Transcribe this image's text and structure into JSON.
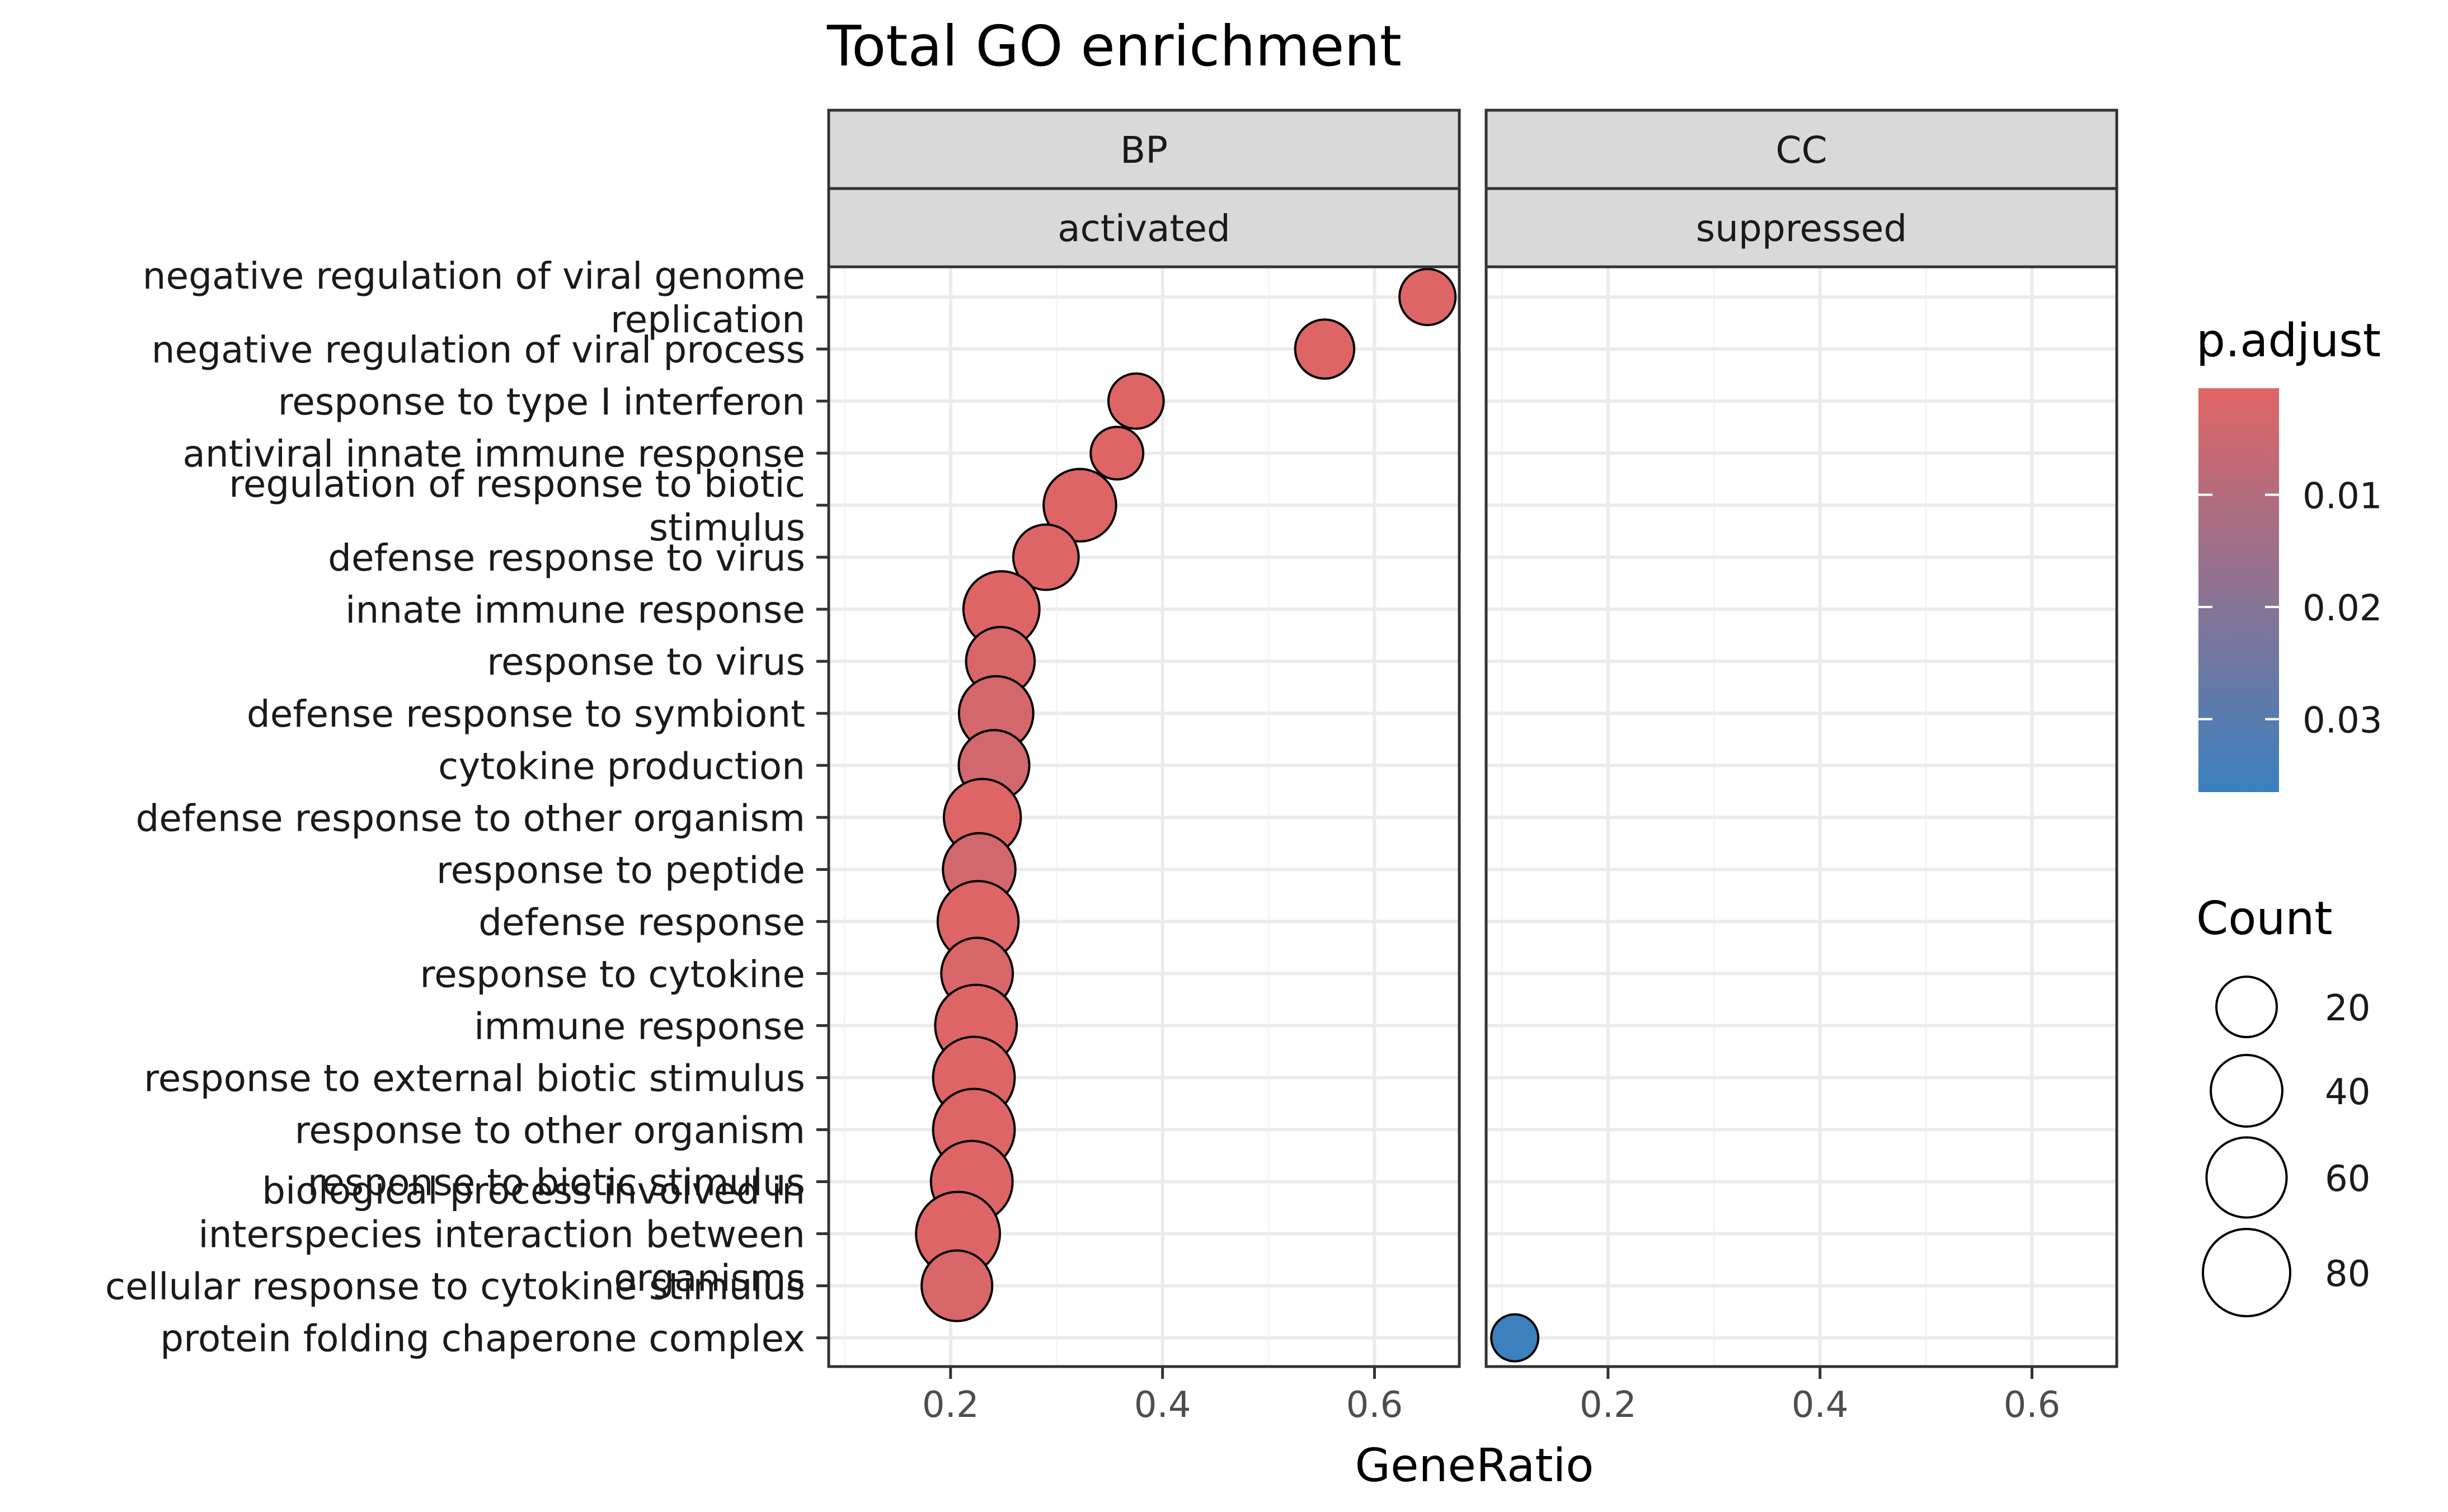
{
  "chart_data": {
    "type": "scatter",
    "title": "Total GO enrichment",
    "xlabel": "GeneRatio",
    "ylabel": "",
    "xlim": [
      0.085,
      0.68
    ],
    "xticks": [
      0.2,
      0.4,
      0.6
    ],
    "xtick_labels": [
      "0.2",
      "0.4",
      "0.6"
    ],
    "grid": true,
    "legend_position": "right",
    "categories": [
      "negative regulation of viral genome replication",
      "negative regulation of viral process",
      "response to type I interferon",
      "antiviral innate immune response",
      "regulation of response to biotic stimulus",
      "defense response to virus",
      "innate immune response",
      "response to virus",
      "defense response to symbiont",
      "cytokine production",
      "defense response to other organism",
      "response to peptide",
      "defense response",
      "response to cytokine",
      "immune response",
      "response to external biotic stimulus",
      "response to other organism",
      "response to biotic stimulus",
      "biological process involved in interspecies interaction between organisms",
      "cellular response to cytokine stimulus",
      "protein folding chaperone complex"
    ],
    "category_lines": [
      [
        "negative regulation of viral genome",
        "replication"
      ],
      [
        "negative regulation of viral process"
      ],
      [
        "response to type I interferon"
      ],
      [
        "antiviral innate immune response"
      ],
      [
        "regulation of response to biotic",
        "stimulus"
      ],
      [
        "defense response to virus"
      ],
      [
        "innate immune response"
      ],
      [
        "response to virus"
      ],
      [
        "defense response to symbiont"
      ],
      [
        "cytokine production"
      ],
      [
        "defense response to other organism"
      ],
      [
        "response to peptide"
      ],
      [
        "defense response"
      ],
      [
        "response to cytokine"
      ],
      [
        "immune response"
      ],
      [
        "response to external biotic stimulus"
      ],
      [
        "response to other organism"
      ],
      [
        "response to biotic stimulus"
      ],
      [
        "biological process involved in",
        "interspecies interaction between",
        "organisms"
      ],
      [
        "cellular response to cytokine stimulus"
      ],
      [
        "protein folding chaperone complex"
      ]
    ],
    "panels": [
      {
        "strip_top": "BP",
        "strip_bottom": "activated",
        "points": [
          {
            "term": "negative regulation of viral genome replication",
            "x": 0.65,
            "count": 14,
            "p_adjust": 0.001
          },
          {
            "term": "negative regulation of viral process",
            "x": 0.553,
            "count": 18,
            "p_adjust": 0.001
          },
          {
            "term": "response to type I interferon",
            "x": 0.375,
            "count": 13,
            "p_adjust": 0.001
          },
          {
            "term": "antiviral innate immune response",
            "x": 0.357,
            "count": 10,
            "p_adjust": 0.001
          },
          {
            "term": "regulation of response to biotic stimulus",
            "x": 0.322,
            "count": 42,
            "p_adjust": 0.001
          },
          {
            "term": "defense response to virus",
            "x": 0.29,
            "count": 28,
            "p_adjust": 0.001
          },
          {
            "term": "innate immune response",
            "x": 0.248,
            "count": 50,
            "p_adjust": 0.001
          },
          {
            "term": "response to virus",
            "x": 0.247,
            "count": 34,
            "p_adjust": 0.002
          },
          {
            "term": "defense response to symbiont",
            "x": 0.243,
            "count": 46,
            "p_adjust": 0.003
          },
          {
            "term": "cytokine production",
            "x": 0.241,
            "count": 38,
            "p_adjust": 0.004
          },
          {
            "term": "defense response to other organism",
            "x": 0.23,
            "count": 52,
            "p_adjust": 0.001
          },
          {
            "term": "response to peptide",
            "x": 0.227,
            "count": 42,
            "p_adjust": 0.004
          },
          {
            "term": "defense response",
            "x": 0.226,
            "count": 62,
            "p_adjust": 0.001
          },
          {
            "term": "response to cytokine",
            "x": 0.225,
            "count": 40,
            "p_adjust": 0.002
          },
          {
            "term": "immune response",
            "x": 0.224,
            "count": 64,
            "p_adjust": 0.001
          },
          {
            "term": "response to external biotic stimulus",
            "x": 0.222,
            "count": 64,
            "p_adjust": 0.001
          },
          {
            "term": "response to other organism",
            "x": 0.222,
            "count": 64,
            "p_adjust": 0.001
          },
          {
            "term": "response to biotic stimulus",
            "x": 0.22,
            "count": 64,
            "p_adjust": 0.001
          },
          {
            "term": "biological process involved in interspecies interaction between organisms",
            "x": 0.207,
            "count": 70,
            "p_adjust": 0.001
          },
          {
            "term": "cellular response to cytokine stimulus",
            "x": 0.206,
            "count": 38,
            "p_adjust": 0.002
          }
        ]
      },
      {
        "strip_top": "CC",
        "strip_bottom": "suppressed",
        "points": [
          {
            "term": "protein folding chaperone complex",
            "x": 0.112,
            "count": 5,
            "p_adjust": 0.036
          }
        ]
      }
    ],
    "color_legend": {
      "title": "p.adjust",
      "min": 0.0005,
      "max": 0.0365,
      "low_color": "#E06565",
      "high_color": "#3A80BF",
      "ticks": [
        0.01,
        0.02,
        0.03
      ],
      "tick_labels": [
        "0.01",
        "0.02",
        "0.03"
      ]
    },
    "size_legend": {
      "title": "Count",
      "values": [
        20,
        40,
        60,
        80
      ],
      "labels": [
        "20",
        "40",
        "60",
        "80"
      ]
    }
  },
  "colors": {
    "panel_border": "#333333",
    "strip_fill": "#D9D9D9",
    "grid_major": "#EBEBEB",
    "grid_minor": "#F5F5F5",
    "point_stroke": "#000000",
    "text": "#1A1A1A",
    "axis_text": "#4D4D4D"
  }
}
